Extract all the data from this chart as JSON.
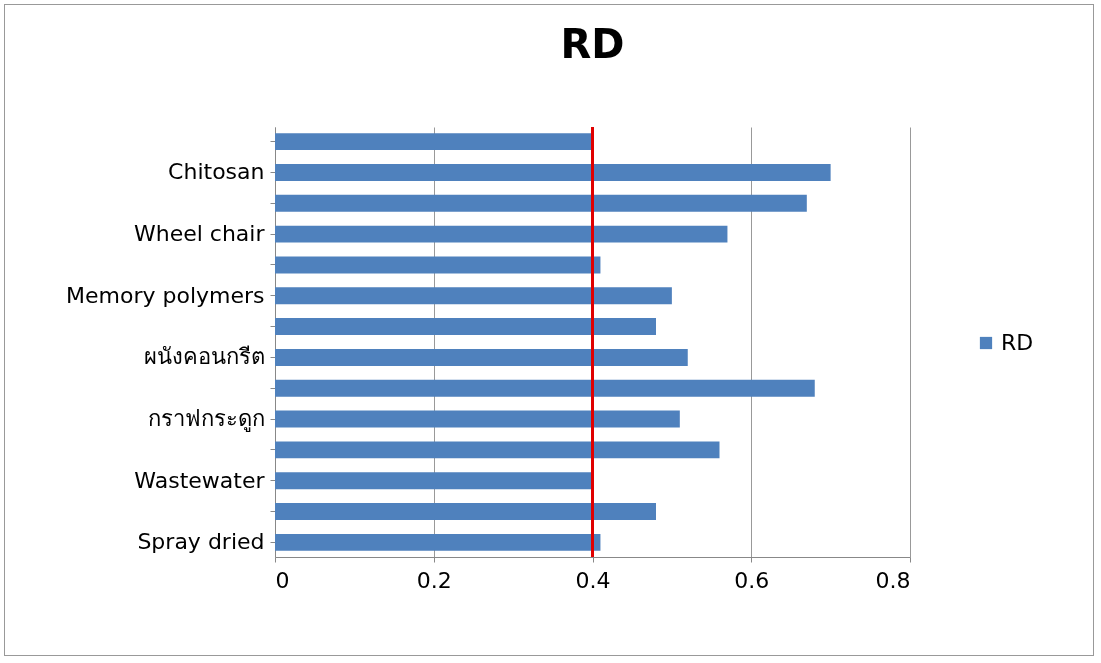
{
  "chart_data": {
    "type": "bar",
    "title": "RD",
    "orientation": "horizontal",
    "categories": [
      null,
      "Chitosan",
      null,
      "Wheel chair",
      null,
      "Memory polymers",
      null,
      "ผนังคอนกรีต",
      null,
      "กราฟกระดูก",
      null,
      "Wastewater",
      null,
      "Spray dried"
    ],
    "series": [
      {
        "name": "RD",
        "color": "#4f81bd",
        "values": [
          0.4,
          0.7,
          0.67,
          0.57,
          0.41,
          0.5,
          0.48,
          0.52,
          0.68,
          0.51,
          0.56,
          0.4,
          0.48,
          0.41
        ]
      }
    ],
    "xlim": [
      0,
      0.8
    ],
    "xticks": [
      0,
      0.2,
      0.4,
      0.6,
      0.8
    ],
    "grid": "x",
    "legend": "right",
    "ref_lines": [
      {
        "axis": "x",
        "value": 0.4,
        "color": "#e00000"
      }
    ]
  }
}
